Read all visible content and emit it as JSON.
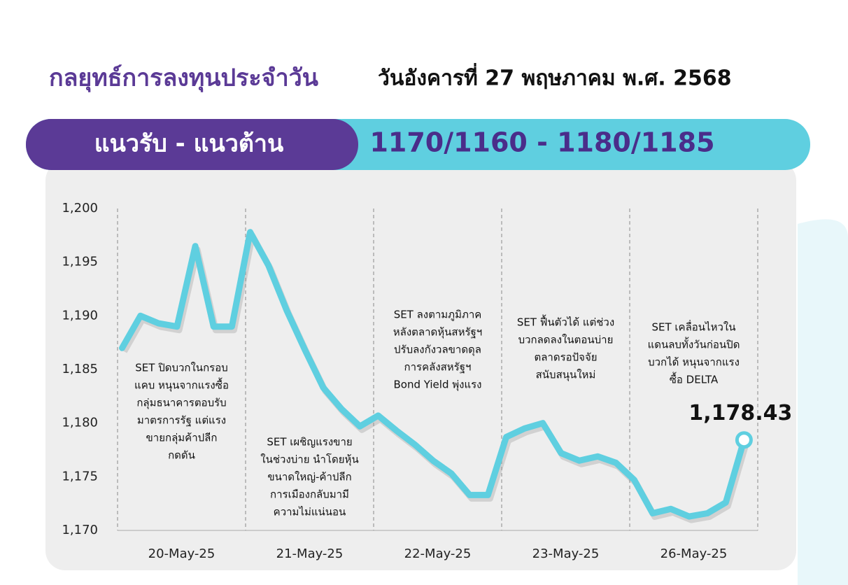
{
  "header": {
    "title": "กลยุทธ์การลงทุนประจำวัน",
    "date": "วันอังคารที่ 27 พฤษภาคม พ.ศ. 2568"
  },
  "banner": {
    "label": "แนวรับ - แนวต้าน",
    "value": "1170/1160 - 1180/1185"
  },
  "chart_data": {
    "type": "line",
    "color": "#5fcfe0",
    "ylim": [
      1170,
      1200
    ],
    "yticks": [
      {
        "value": 1200,
        "label": "1,200"
      },
      {
        "value": 1195,
        "label": "1,195"
      },
      {
        "value": 1190,
        "label": "1,190"
      },
      {
        "value": 1185,
        "label": "1,185"
      },
      {
        "value": 1180,
        "label": "1,180"
      },
      {
        "value": 1175,
        "label": "1,175"
      },
      {
        "value": 1170,
        "label": "1,170"
      }
    ],
    "days": [
      {
        "label": "20-May-25",
        "values": [
          1187,
          1190,
          1189.3,
          1189,
          1196.5,
          1189,
          1189
        ],
        "note": [
          "SET ปิดบวกในกรอบ",
          "แคบ หนุนจากแรงซื้อ",
          "กลุ่มธนาคารตอบรับ",
          "มาตรการรัฐ แต่แรง",
          "ขายกลุ่มค้าปลีก",
          "กดดัน"
        ]
      },
      {
        "label": "21-May-25",
        "values": [
          1197.8,
          1194.7,
          1190.5,
          1186.8,
          1183.3,
          1181.3,
          1179.7
        ],
        "note": [
          "SET เผชิญแรงขาย",
          "ในช่วงบ่าย นำโดยหุ้น",
          "ขนาดใหญ่-ค้าปลีก",
          "การเมืองกลับมามี",
          "ความไม่แน่นอน"
        ]
      },
      {
        "label": "22-May-25",
        "values": [
          1180.7,
          1179.3,
          1178,
          1176.5,
          1175.3,
          1173.3,
          1173.3
        ],
        "note": [
          "SET ลงตามภูมิภาค",
          "หลังตลาดหุ้นสหรัฐฯ",
          "ปรับลงกังวลขาดดุล",
          "การคลังสหรัฐฯ",
          "Bond Yield พุ่งแรง"
        ]
      },
      {
        "label": "23-May-25",
        "values": [
          1178.7,
          1179.5,
          1180,
          1177.2,
          1176.5,
          1176.9,
          1176.3
        ],
        "note": [
          "SET ฟื้นตัวได้ แต่ช่วง",
          "บวกลดลงในตอนบ่าย",
          "ตลาดรอปัจจัย",
          "สนับสนุนใหม่"
        ]
      },
      {
        "label": "26-May-25",
        "values": [
          1174.7,
          1171.6,
          1172,
          1171.3,
          1171.6,
          1172.6,
          1178.43
        ],
        "value_labels": [
          null,
          null,
          null,
          null,
          null,
          null,
          "1,178.43"
        ],
        "note": [
          "SET เคลื่อนไหวใน",
          "แดนลบทั้งวันก่อนปิด",
          "บวกได้ หนุนจากแรง",
          "ซื้อ DELTA"
        ]
      }
    ]
  }
}
